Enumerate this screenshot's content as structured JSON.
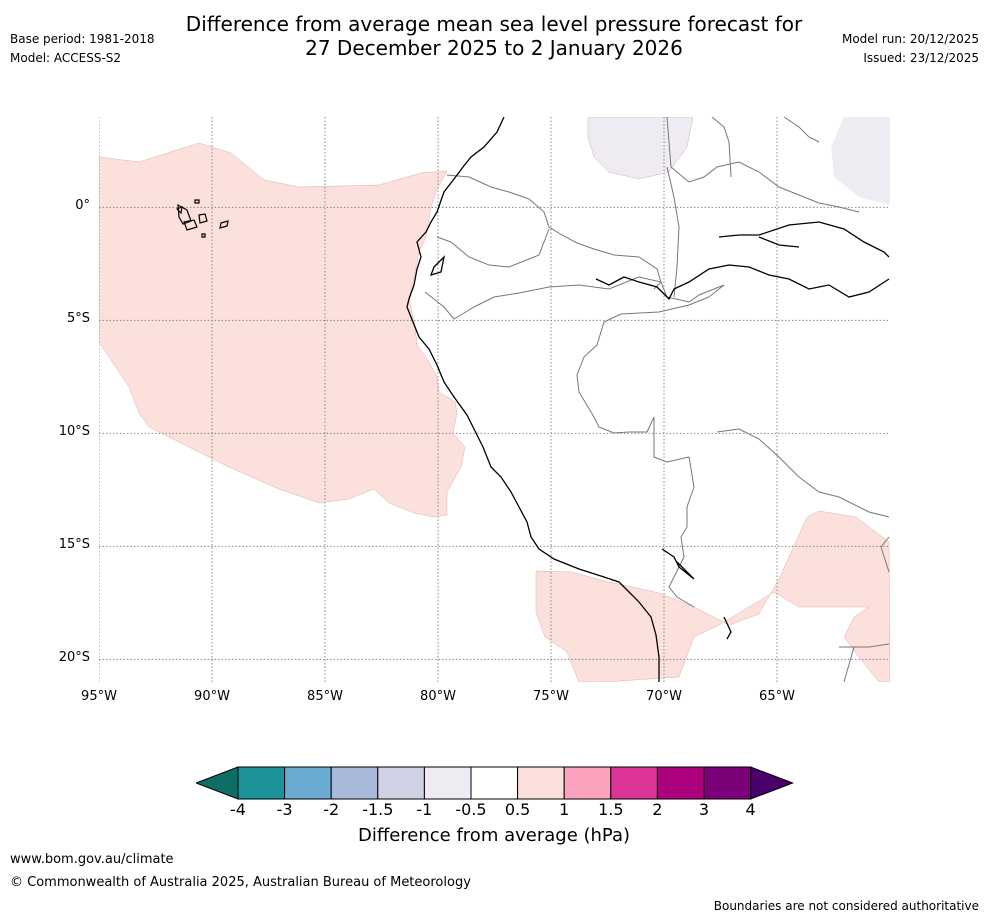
{
  "header": {
    "title_line1": "Difference from average mean sea level pressure forecast for",
    "title_line2": "27 December 2025 to 2 January 2026",
    "base_period": "Base period: 1981-2018",
    "model": "Model: ACCESS-S2",
    "model_run": "Model run: 20/12/2025",
    "issued": "Issued: 23/12/2025"
  },
  "map": {
    "lat_labels": [
      "0°",
      "5°S",
      "10°S",
      "15°S",
      "20°S"
    ],
    "lat_values": [
      0,
      -5,
      -10,
      -15,
      -20
    ],
    "lon_labels": [
      "95°W",
      "90°W",
      "85°W",
      "80°W",
      "75°W",
      "70°W",
      "65°W"
    ],
    "lon_values": [
      -95,
      -90,
      -85,
      -80,
      -75,
      -70,
      -65
    ],
    "extent": {
      "west": -95,
      "east": -60,
      "north": 4,
      "south": -21
    },
    "anomaly_regions": [
      {
        "name": "pacific-positive-anomaly",
        "category": "0.5 to 1",
        "color": "#fce0dc"
      },
      {
        "name": "altiplano-positive-anomaly",
        "category": "0.5 to 1",
        "color": "#fce0dc"
      },
      {
        "name": "amazon-negative-anomaly",
        "category": "-1 to -0.5",
        "color": "#efebf2"
      }
    ]
  },
  "colorbar": {
    "title": "Difference from average (hPa)",
    "ticks": [
      "-4",
      "-3",
      "-2",
      "-1.5",
      "-1",
      "-0.5",
      "0.5",
      "1",
      "1.5",
      "2",
      "3",
      "4"
    ],
    "colors": [
      "#0d6e63",
      "#1c9398",
      "#6aabd1",
      "#a8b9da",
      "#d1d1e6",
      "#efebf2",
      "#ffffff",
      "#fce0dc",
      "#fba3bc",
      "#dd3497",
      "#ae017e",
      "#7a0177",
      "#49006a"
    ]
  },
  "footer": {
    "website": "www.bom.gov.au/climate",
    "copyright": "© Commonwealth of Australia 2025, Australian Bureau of Meteorology",
    "disclaimer": "Boundaries are not considered authoritative"
  }
}
